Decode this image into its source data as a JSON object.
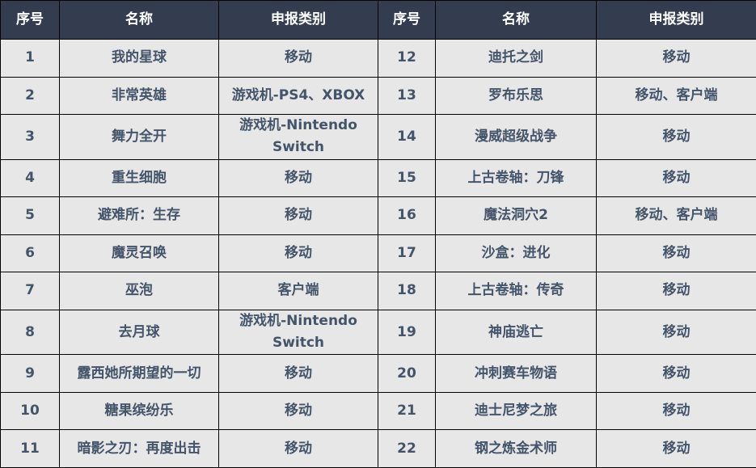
{
  "headers": [
    "序号",
    "名称",
    "申报类别",
    "序号",
    "名称",
    "申报类别"
  ],
  "rows": [
    [
      "1",
      "我的星球",
      "移动",
      "12",
      "迪托之剑",
      "移动"
    ],
    [
      "2",
      "非常英雄",
      "游戏机-PS4、XBOX",
      "13",
      "罗布乐思",
      "移动、客户端"
    ],
    [
      "3",
      "舞力全开",
      "游戏机-Nintendo Switch",
      "14",
      "漫威超级战争",
      "移动"
    ],
    [
      "4",
      "重生细胞",
      "移动",
      "15",
      "上古卷轴：刀锋",
      "移动"
    ],
    [
      "5",
      "避难所：生存",
      "移动",
      "16",
      "魔法洞穴2",
      "移动、客户端"
    ],
    [
      "6",
      "魔灵召唤",
      "移动",
      "17",
      "沙盒：进化",
      "移动"
    ],
    [
      "7",
      "巫泡",
      "客户端",
      "18",
      "上古卷轴：传奇",
      "移动"
    ],
    [
      "8",
      "去月球",
      "游戏机-Nintendo Switch",
      "19",
      "神庙逃亡",
      "移动"
    ],
    [
      "9",
      "露西她所期望的一切",
      "移动",
      "20",
      "冲刺赛车物语",
      "移动"
    ],
    [
      "10",
      "糖果缤纷乐",
      "移动",
      "21",
      "迪士尼梦之旅",
      "移动"
    ],
    [
      "11",
      "暗影之刃：再度出击",
      "移动",
      "22",
      "钢之炼金术师",
      "移动"
    ]
  ],
  "colors": {
    "header_bg": "#333d4f",
    "header_text": "#ffffff",
    "cell_bg": "#e7e7e7",
    "cell_text": "#44546a"
  }
}
